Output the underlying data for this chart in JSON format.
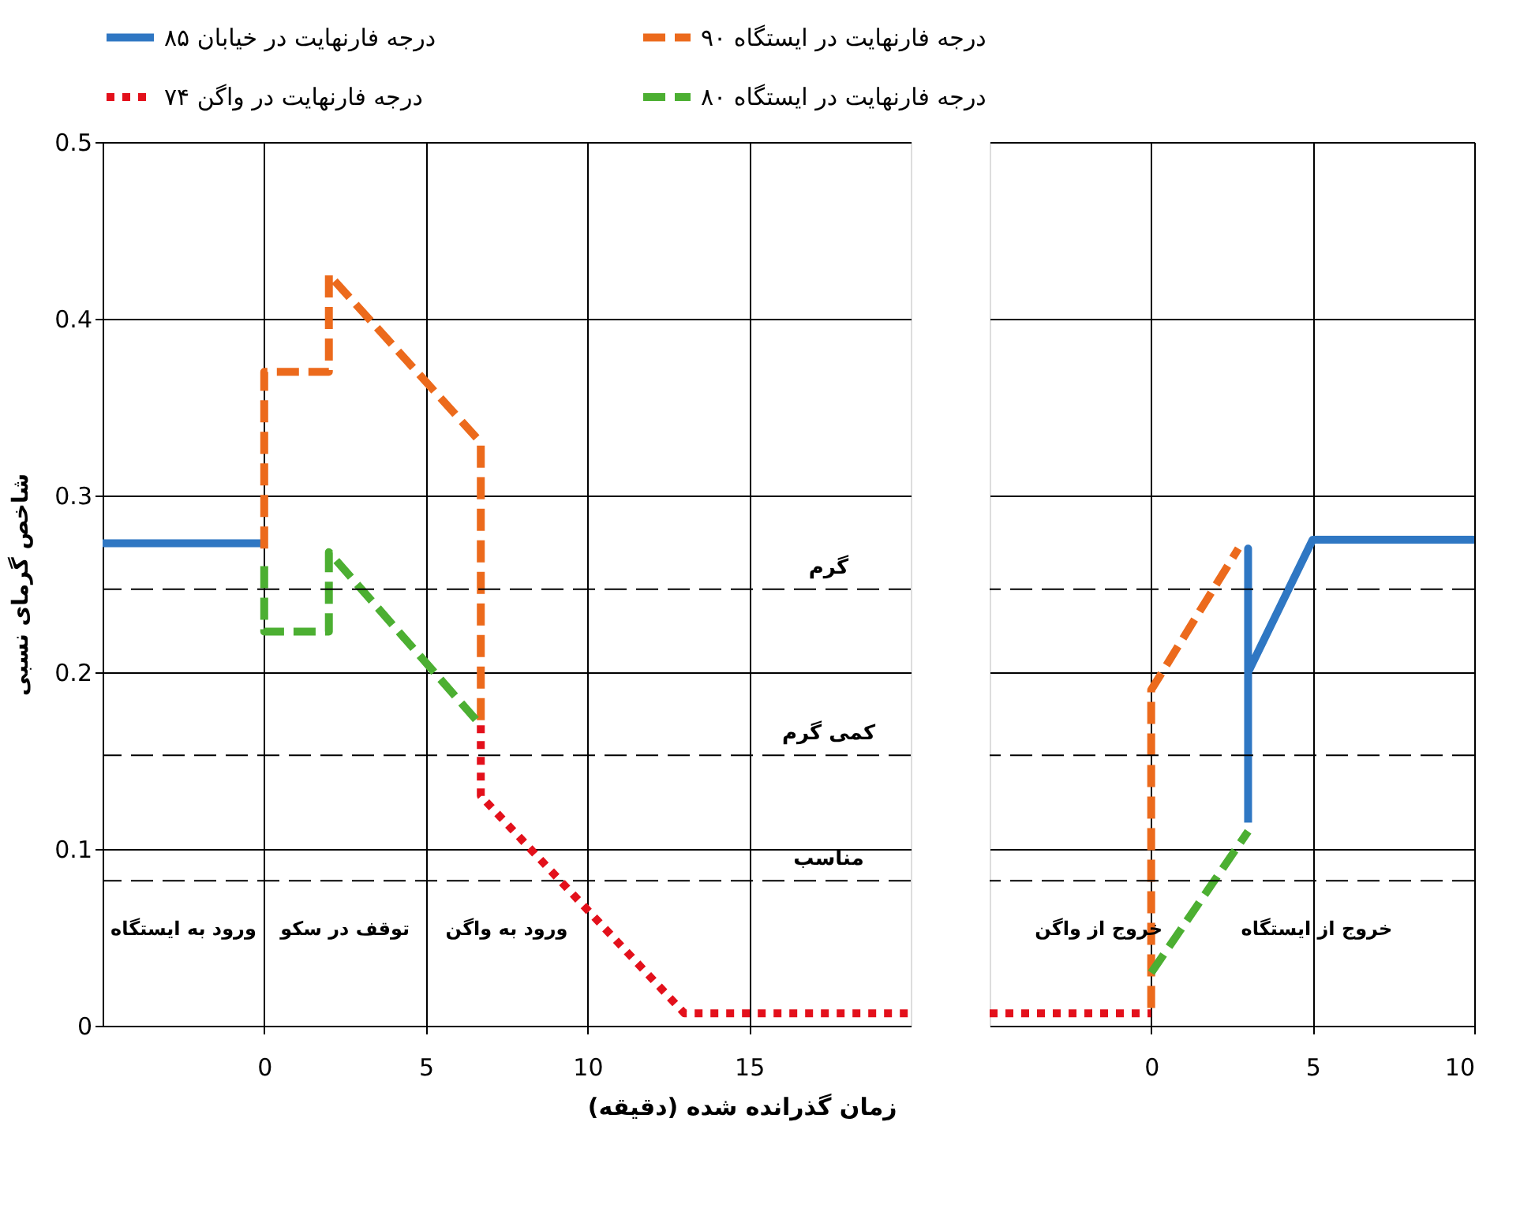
{
  "chart_data": [
    {
      "type": "line",
      "ylabel": "شاخص گرمای نسبی",
      "xlabel": "زمان گذرانده شده (دقیقه)",
      "xlim": [
        -5,
        20
      ],
      "xticks": [
        0,
        5,
        10,
        15
      ],
      "ylim": [
        0,
        0.5
      ],
      "yticks": [
        0,
        0.1,
        0.2,
        0.3,
        0.4,
        0.5
      ],
      "grid": true,
      "legend": "top",
      "series": [
        {
          "name": "۸۵ درجه فارنهایت در خیابان",
          "color": "#2f77c3",
          "line_style": "solid",
          "x": [
            -5,
            0
          ],
          "values": [
            0.273,
            0.273
          ]
        },
        {
          "name": "۹۰ درجه فارنهایت در ایستگاه",
          "color": "#ec6a1c",
          "line_style": "dashed",
          "x": [
            0,
            0,
            2,
            2,
            6.7,
            6.7
          ],
          "values": [
            0.27,
            0.37,
            0.37,
            0.425,
            0.33,
            0.17
          ]
        },
        {
          "name": "۷۴ درجه فارنهایت در واگن",
          "color": "#e3101b",
          "line_style": "dotted",
          "x": [
            6.7,
            6.7,
            13,
            20
          ],
          "values": [
            0.17,
            0.13,
            0.007,
            0.007
          ]
        },
        {
          "name": "۸۰ درجه فارنهایت در ایستگاه",
          "color": "#4caf32",
          "line_style": "dashed",
          "x": [
            0,
            0,
            2,
            2,
            6.7
          ],
          "values": [
            0.26,
            0.223,
            0.223,
            0.268,
            0.17
          ]
        }
      ],
      "ref_lines": [
        {
          "axis": "y",
          "value": 0.247,
          "label": "گرم",
          "line_style": "dashed"
        },
        {
          "axis": "y",
          "value": 0.153,
          "label": "کمی گرم",
          "line_style": "dashed"
        },
        {
          "axis": "y",
          "value": 0.082,
          "label": "مناسب",
          "line_style": "dashed"
        }
      ],
      "annotations": [
        "ورود به ایستگاه",
        "توقف در سکو",
        "ورود به واگن"
      ]
    },
    {
      "type": "line",
      "xlim": [
        -5,
        10
      ],
      "xticks": [
        0,
        5,
        10
      ],
      "ylim": [
        0,
        0.5
      ],
      "yticks": [
        0,
        0.1,
        0.2,
        0.3,
        0.4,
        0.5
      ],
      "grid": true,
      "tick_labels": "x",
      "series": [
        {
          "color": "#e3101b",
          "line_style": "dotted",
          "x": [
            -5,
            0
          ],
          "values": [
            0.007,
            0.007
          ]
        },
        {
          "color": "#ec6a1c",
          "line_style": "dashed",
          "x": [
            0,
            0,
            2.7
          ],
          "values": [
            0.01,
            0.19,
            0.27
          ]
        },
        {
          "color": "#4caf32",
          "line_style": "dashed",
          "x": [
            0,
            3
          ],
          "values": [
            0.03,
            0.11
          ]
        },
        {
          "color": "#2f77c3",
          "line_style": "solid",
          "x": [
            3,
            3,
            3,
            5,
            10
          ],
          "values": [
            0.115,
            0.27,
            0.2,
            0.275,
            0.275
          ]
        }
      ],
      "ref_lines": [
        {
          "axis": "y",
          "value": 0.247,
          "line_style": "dashed"
        },
        {
          "axis": "y",
          "value": 0.153,
          "line_style": "dashed"
        },
        {
          "axis": "y",
          "value": 0.082,
          "line_style": "dashed"
        }
      ],
      "annotations": [
        "خروج از واگن",
        "خروج از ایستگاه"
      ]
    }
  ]
}
